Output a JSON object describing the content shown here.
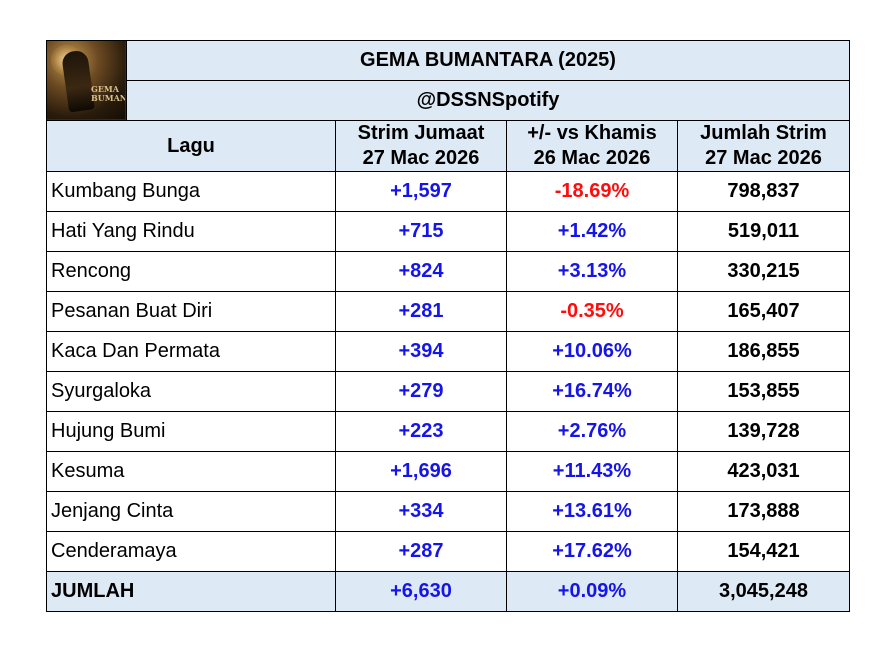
{
  "title": "GEMA BUMANTARA (2025)",
  "handle": "@DSSNSpotify",
  "cover": {
    "name": "album-cover",
    "glyph_text": "GEMA BUMANTARA"
  },
  "headers": {
    "song": "Lagu",
    "daily_line1": "Strim Jumaat",
    "daily_line2": "27 Mac 2026",
    "change_line1": "+/- vs Khamis",
    "change_line2": "26 Mac 2026",
    "total_line1": "Jumlah Strim",
    "total_line2": "27 Mac 2026"
  },
  "colors": {
    "positive": "#1515e8",
    "negative": "#ff0d0d",
    "header_bg": "#dde9f5"
  },
  "rows": [
    {
      "song": "Kumbang Bunga",
      "daily": "+1,597",
      "change": "-18.69%",
      "change_sign": "neg",
      "total": "798,837"
    },
    {
      "song": "Hati Yang Rindu",
      "daily": "+715",
      "change": "+1.42%",
      "change_sign": "pos",
      "total": "519,011"
    },
    {
      "song": "Rencong",
      "daily": "+824",
      "change": "+3.13%",
      "change_sign": "pos",
      "total": "330,215"
    },
    {
      "song": "Pesanan Buat Diri",
      "daily": "+281",
      "change": "-0.35%",
      "change_sign": "neg",
      "total": "165,407"
    },
    {
      "song": "Kaca Dan Permata",
      "daily": "+394",
      "change": "+10.06%",
      "change_sign": "pos",
      "total": "186,855"
    },
    {
      "song": "Syurgaloka",
      "daily": "+279",
      "change": "+16.74%",
      "change_sign": "pos",
      "total": "153,855"
    },
    {
      "song": "Hujung Bumi",
      "daily": "+223",
      "change": "+2.76%",
      "change_sign": "pos",
      "total": "139,728"
    },
    {
      "song": "Kesuma",
      "daily": "+1,696",
      "change": "+11.43%",
      "change_sign": "pos",
      "total": "423,031"
    },
    {
      "song": "Jenjang Cinta",
      "daily": "+334",
      "change": "+13.61%",
      "change_sign": "pos",
      "total": "173,888"
    },
    {
      "song": "Cenderamaya",
      "daily": "+287",
      "change": "+17.62%",
      "change_sign": "pos",
      "total": "154,421"
    }
  ],
  "total": {
    "label": "JUMLAH",
    "daily": "+6,630",
    "change": "+0.09%",
    "total": "3,045,248"
  }
}
